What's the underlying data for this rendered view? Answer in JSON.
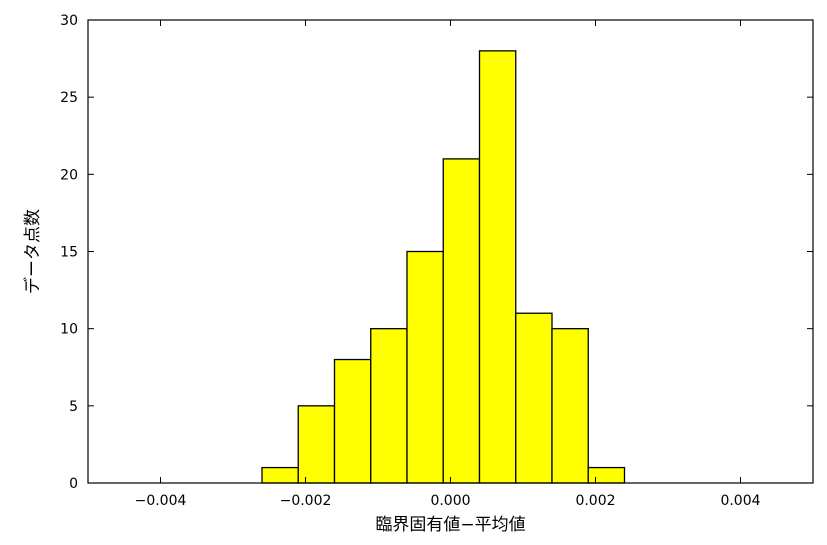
{
  "chart_data": {
    "type": "bar",
    "title": "",
    "xlabel": "臨界固有値−平均値",
    "ylabel": "データ点数",
    "xlim": [
      -0.005,
      0.005
    ],
    "ylim": [
      0,
      30
    ],
    "bar_color": "#ffff00",
    "edge_color": "#000000",
    "grid": false,
    "xticks": [
      -0.004,
      -0.002,
      0.0,
      0.002,
      0.004
    ],
    "xtick_labels": [
      "−0.004",
      "−0.002",
      "0.000",
      "0.002",
      "0.004"
    ],
    "yticks": [
      0,
      5,
      10,
      15,
      20,
      25,
      30
    ],
    "ytick_labels": [
      "0",
      "5",
      "10",
      "15",
      "20",
      "25",
      "30"
    ],
    "bins": [
      {
        "x0": -0.0026,
        "x1": -0.0021,
        "count": 1
      },
      {
        "x0": -0.0021,
        "x1": -0.0016,
        "count": 5
      },
      {
        "x0": -0.0016,
        "x1": -0.0011,
        "count": 8
      },
      {
        "x0": -0.0011,
        "x1": -0.0006,
        "count": 10
      },
      {
        "x0": -0.0006,
        "x1": -0.0001,
        "count": 15
      },
      {
        "x0": -0.0001,
        "x1": 0.0004,
        "count": 21
      },
      {
        "x0": 0.0004,
        "x1": 0.0009,
        "count": 28
      },
      {
        "x0": 0.0009,
        "x1": 0.0014,
        "count": 11
      },
      {
        "x0": 0.0014,
        "x1": 0.0019,
        "count": 10
      },
      {
        "x0": 0.0019,
        "x1": 0.0024,
        "count": 1
      }
    ]
  }
}
